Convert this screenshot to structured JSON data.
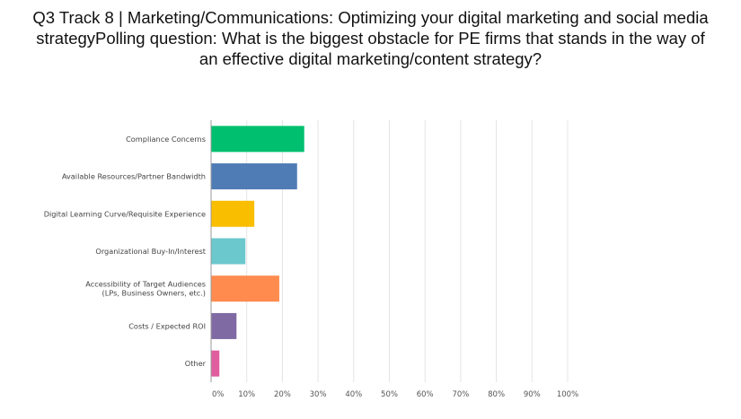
{
  "chart_title_lines": [
    "Q3 Track 8 | Marketing/Communications: Optimizing your digital marketing and social media",
    "strategyPolling question: What is the biggest obstacle for PE firms that stands in the way of",
    "an effective digital marketing/content strategy?"
  ],
  "chart_data": {
    "type": "bar",
    "orientation": "horizontal",
    "title": "Q3 Track 8 | Marketing/Communications: Optimizing your digital marketing and social media strategyPolling question: What is the biggest obstacle for PE firms that stands in the way of an effective digital marketing/content strategy?",
    "categories": [
      [
        "Compliance Concerns"
      ],
      [
        "Available Resources/Partner Bandwidth"
      ],
      [
        "Digital Learning Curve/Requisite Experience"
      ],
      [
        "Organizational Buy-In/Interest"
      ],
      [
        "Accessibility of Target Audiences",
        "(LPs, Business Owners, etc.)"
      ],
      [
        "Costs / Expected ROI"
      ],
      [
        "Other"
      ]
    ],
    "values": [
      26,
      24,
      12,
      9.5,
      19,
      7,
      2.2
    ],
    "colors": [
      "#00bf6f",
      "#507cb6",
      "#f9be00",
      "#6bc8cd",
      "#ff8b4f",
      "#7f6aa3",
      "#e05da0"
    ],
    "xlim": [
      0,
      100
    ],
    "xticks": [
      "0%",
      "10%",
      "20%",
      "30%",
      "40%",
      "50%",
      "60%",
      "70%",
      "80%",
      "90%",
      "100%"
    ],
    "xlabel": "",
    "ylabel": "",
    "grid": true,
    "legend": "none"
  }
}
